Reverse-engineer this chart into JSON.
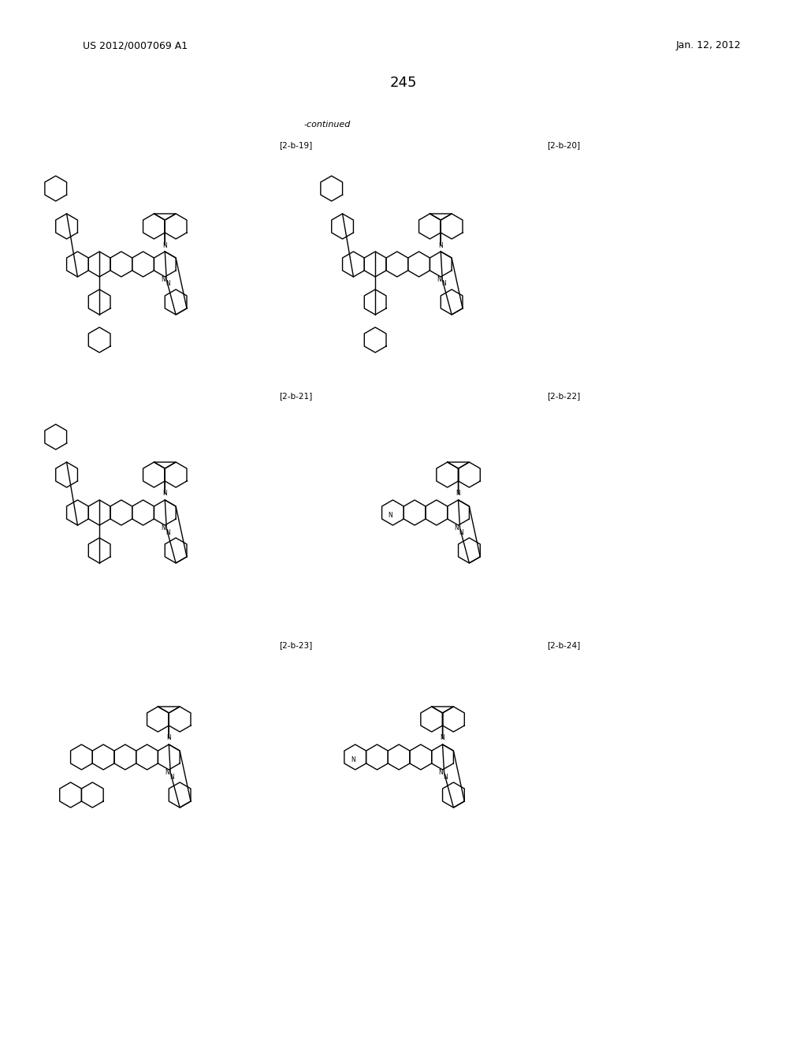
{
  "page_number": "245",
  "header_left": "US 2012/0007069 A1",
  "header_right": "Jan. 12, 2012",
  "continued_label": "-continued",
  "labels": [
    "[2-b-19]",
    "[2-b-20]",
    "[2-b-21]",
    "[2-b-22]",
    "[2-b-23]",
    "[2-b-24]"
  ],
  "bg_color": "#ffffff",
  "line_color": "#000000",
  "figsize": [
    10.24,
    13.2
  ],
  "dpi": 100
}
